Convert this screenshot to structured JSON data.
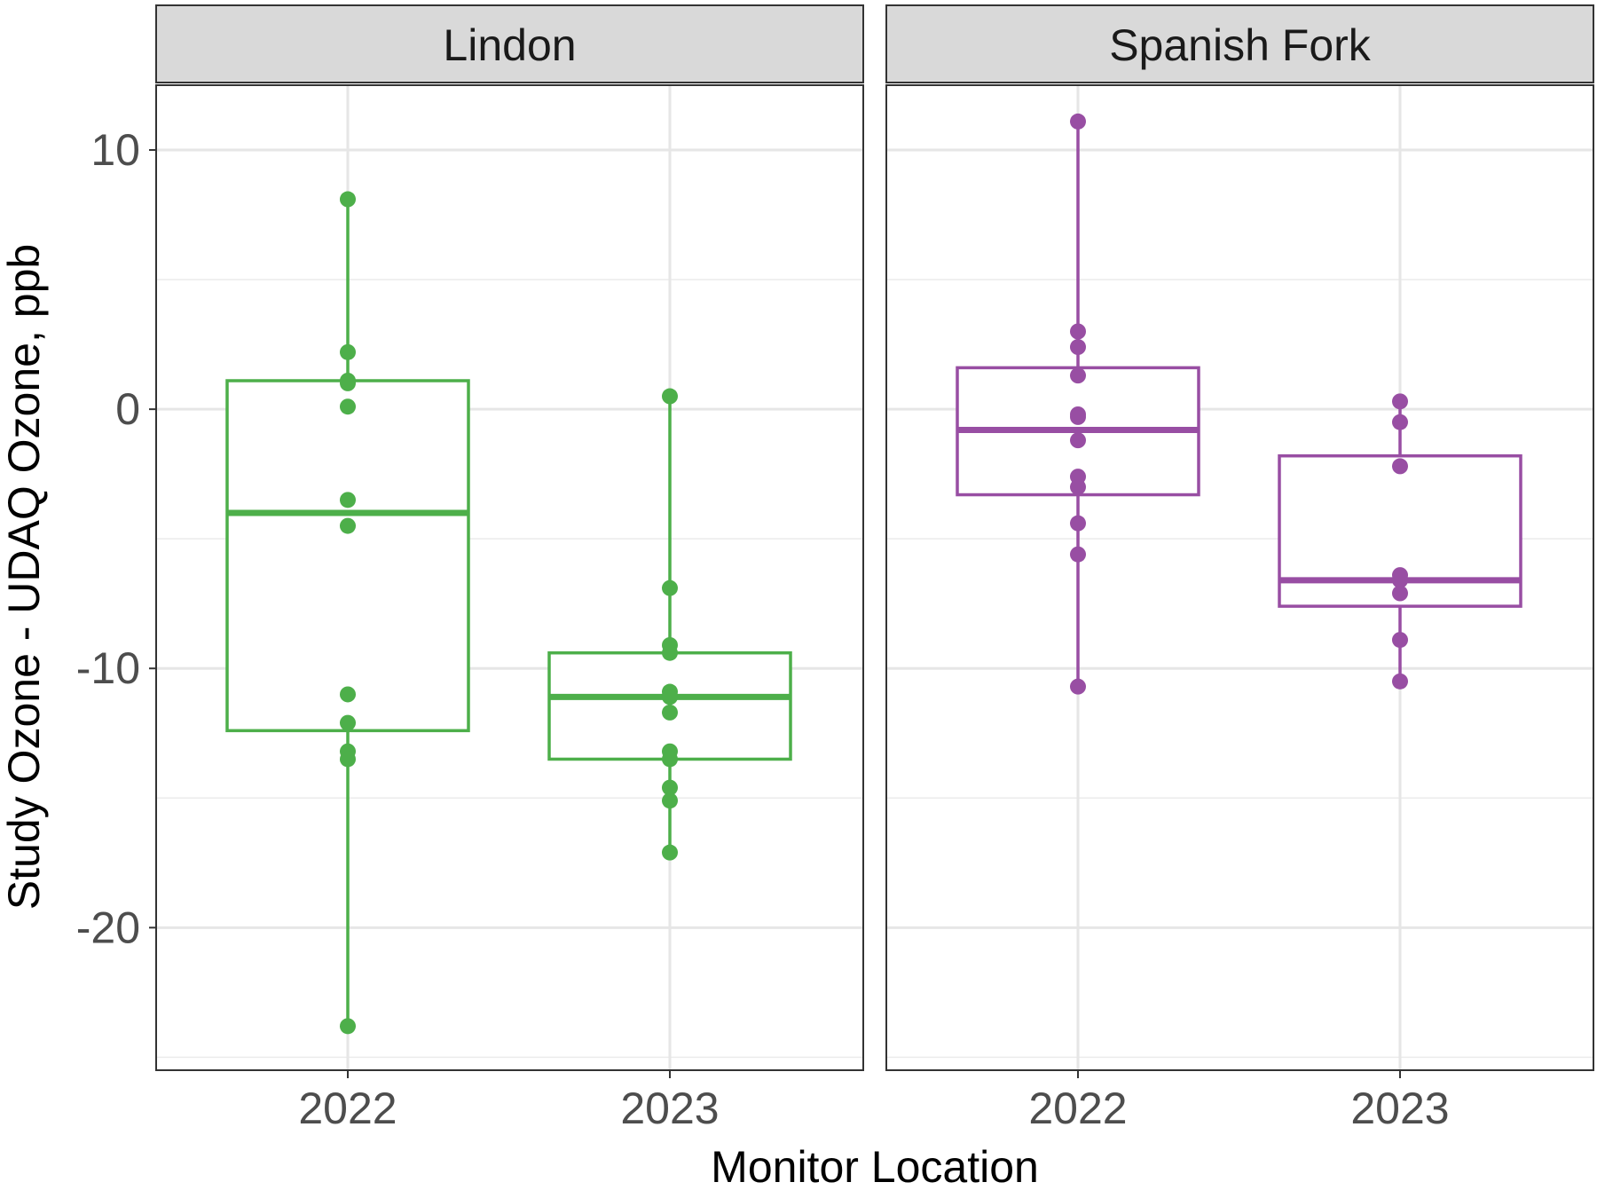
{
  "chart_data": {
    "type": "box",
    "xlabel": "Monitor Location",
    "ylabel": "Study Ozone - UDAQ Ozone, ppb",
    "ylim": [
      -25.5,
      12.5
    ],
    "yticks": [
      10,
      0,
      -10,
      -20
    ],
    "ytick_labels": [
      "10",
      "0",
      "-10",
      "-20"
    ],
    "grid": true,
    "facets": [
      {
        "name": "Lindon",
        "color": "#4daf4a",
        "groups": [
          {
            "category": "2022",
            "q1": -12.4,
            "median": -4.0,
            "q3": 1.1,
            "whisker_low": -23.8,
            "whisker_high": 8.1,
            "points": [
              8.1,
              2.2,
              1.1,
              1.0,
              0.1,
              -3.5,
              -4.5,
              -11.0,
              -12.1,
              -13.2,
              -13.5,
              -23.8
            ]
          },
          {
            "category": "2023",
            "q1": -13.5,
            "median": -11.1,
            "q3": -9.4,
            "whisker_low": -17.1,
            "whisker_high": 0.5,
            "points": [
              0.5,
              -6.9,
              -9.1,
              -9.4,
              -10.9,
              -11.1,
              -11.7,
              -13.2,
              -13.5,
              -14.6,
              -15.1,
              -17.1
            ]
          }
        ]
      },
      {
        "name": "Spanish Fork",
        "color": "#984ea3",
        "groups": [
          {
            "category": "2022",
            "q1": -3.3,
            "median": -0.8,
            "q3": 1.6,
            "whisker_low": -10.7,
            "whisker_high": 11.1,
            "points": [
              11.1,
              3.0,
              2.4,
              1.3,
              -0.2,
              -0.3,
              -1.2,
              -2.6,
              -3.0,
              -4.4,
              -5.6,
              -10.7
            ]
          },
          {
            "category": "2023",
            "q1": -7.6,
            "median": -6.6,
            "q3": -1.8,
            "whisker_low": -10.5,
            "whisker_high": 0.3,
            "points": [
              0.3,
              -0.5,
              -2.2,
              -6.4,
              -6.6,
              -7.1,
              -8.9,
              -10.5
            ]
          }
        ]
      }
    ]
  }
}
